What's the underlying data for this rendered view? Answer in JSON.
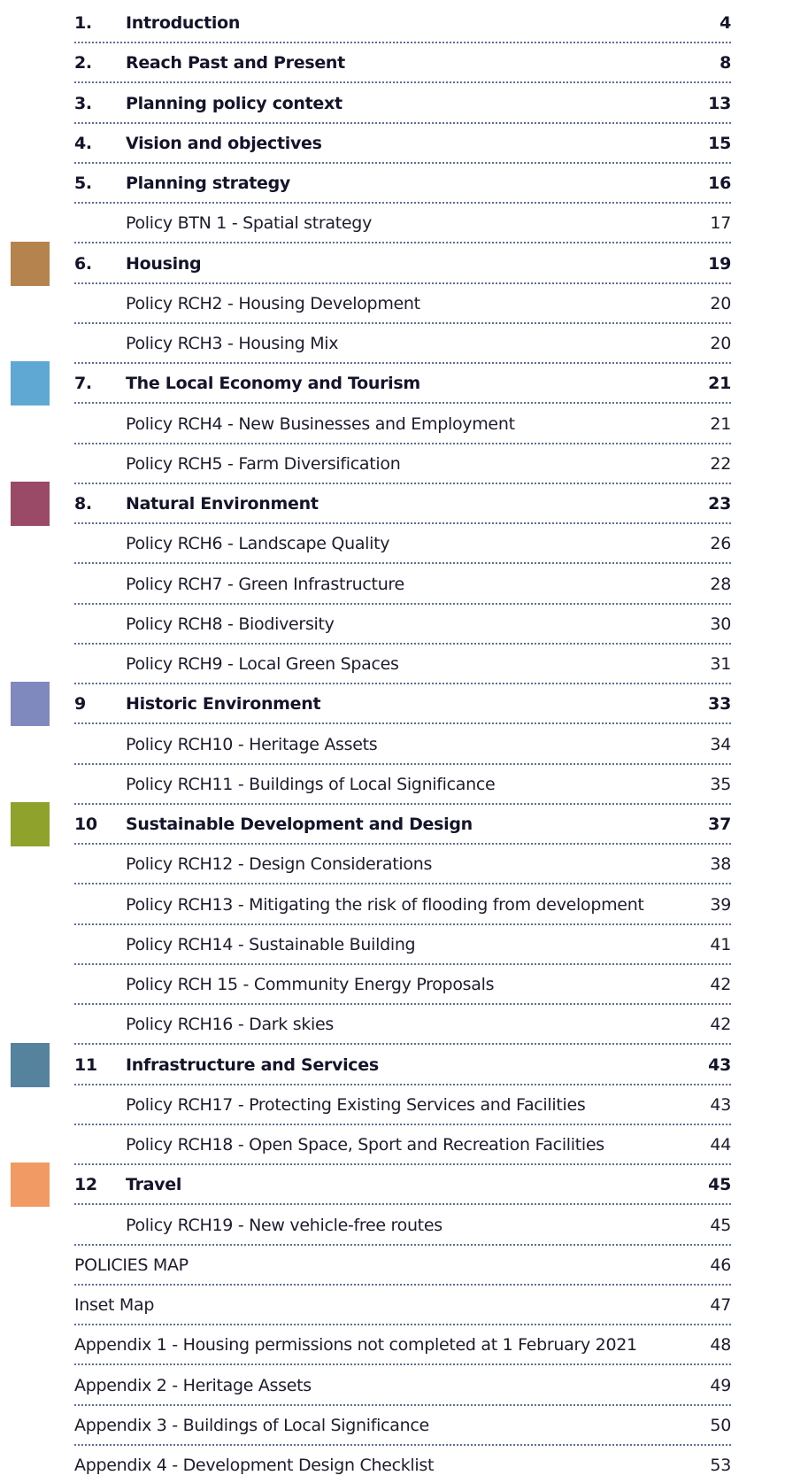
{
  "toc": {
    "chapters": [
      {
        "number": "1.",
        "title": "Introduction",
        "page": 4,
        "policies": []
      },
      {
        "number": "2.",
        "title": "Reach Past and Present",
        "page": 8,
        "policies": []
      },
      {
        "number": "3.",
        "title": "Planning policy context",
        "page": 13,
        "policies": []
      },
      {
        "number": "4.",
        "title": "Vision and objectives",
        "page": 15,
        "policies": []
      },
      {
        "number": "5.",
        "title": "Planning strategy",
        "page": 16,
        "policies": [
          {
            "title": "Policy BTN 1 - Spatial strategy",
            "page": 17
          }
        ]
      },
      {
        "number": "6.",
        "title": "Housing",
        "page": 19,
        "color": "#b5834d",
        "policies": [
          {
            "title": "Policy RCH2 - Housing Development",
            "page": 20
          },
          {
            "title": "Policy RCH3 - Housing Mix",
            "page": 20
          }
        ]
      },
      {
        "number": "7.",
        "title": "The Local Economy and Tourism",
        "page": 21,
        "color": "#5fa8d3",
        "policies": [
          {
            "title": "Policy RCH4 - New Businesses and Employment",
            "page": 21
          },
          {
            "title": "Policy RCH5 - Farm Diversification",
            "page": 22
          }
        ]
      },
      {
        "number": "8.",
        "title": "Natural Environment",
        "page": 23,
        "color": "#9a4a66",
        "policies": [
          {
            "title": "Policy RCH6 - Landscape Quality",
            "page": 26
          },
          {
            "title": "Policy RCH7 - Green Infrastructure",
            "page": 28
          },
          {
            "title": "Policy RCH8 - Biodiversity",
            "page": 30
          },
          {
            "title": "Policy RCH9 - Local Green Spaces",
            "page": 31
          }
        ]
      },
      {
        "number": "9",
        "title": "Historic Environment",
        "page": 33,
        "color": "#7f89bd",
        "policies": [
          {
            "title": "Policy RCH10 - Heritage Assets",
            "page": 34
          },
          {
            "title": "Policy RCH11 - Buildings of Local Significance",
            "page": 35
          }
        ]
      },
      {
        "number": "10",
        "title": "Sustainable Development and Design",
        "page": 37,
        "color": "#8ea22c",
        "policies": [
          {
            "title": "Policy RCH12 - Design Considerations",
            "page": 38
          },
          {
            "title": "Policy RCH13 - Mitigating the risk of flooding from development",
            "page": 39
          },
          {
            "title": "Policy RCH14 - Sustainable Building",
            "page": 41
          },
          {
            "title": "Policy RCH 15 - Community Energy Proposals",
            "page": 42
          },
          {
            "title": "Policy RCH16 - Dark skies",
            "page": 42
          }
        ]
      },
      {
        "number": "11",
        "title": "Infrastructure and Services",
        "page": 43,
        "color": "#55829c",
        "policies": [
          {
            "title": "Policy RCH17 - Protecting Existing Services and Facilities",
            "page": 43
          },
          {
            "title": "Policy RCH18 - Open Space, Sport and Recreation Facilities",
            "page": 44
          }
        ]
      },
      {
        "number": "12",
        "title": "Travel",
        "page": 45,
        "color": "#f29a64",
        "policies": [
          {
            "title": "Policy RCH19 - New vehicle-free routes",
            "page": 45
          }
        ]
      }
    ],
    "back_matter": [
      {
        "title": "POLICIES MAP",
        "page": 46
      },
      {
        "title": "Inset Map",
        "page": 47
      },
      {
        "title": "Appendix 1 - Housing permissions not completed at 1 February 2021",
        "page": 48
      },
      {
        "title": "Appendix 2 - Heritage Assets",
        "page": 49
      },
      {
        "title": "Appendix 3 - Buildings of Local Significance",
        "page": 50
      },
      {
        "title": "Appendix 4 - Development Design Checklist",
        "page": 53
      }
    ]
  }
}
